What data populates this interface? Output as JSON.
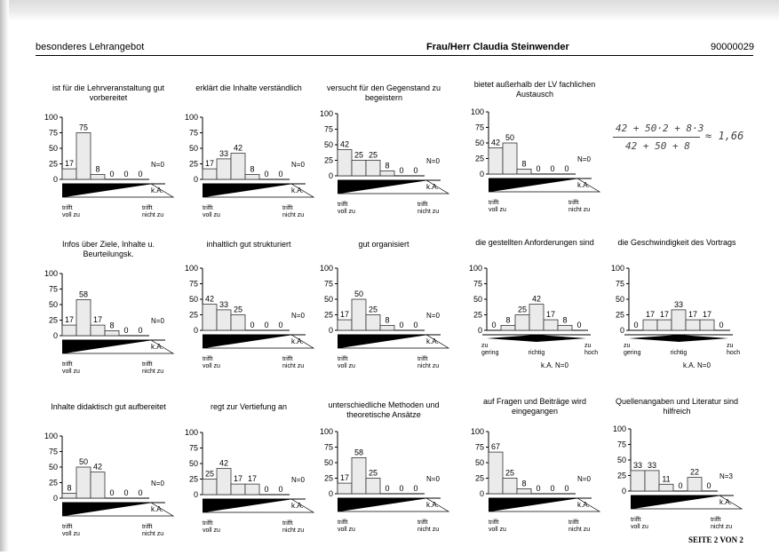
{
  "header": {
    "left": "besonderes Lehrangebot",
    "center": "Frau/Herr Claudia Steinwender",
    "right": "90000029"
  },
  "formula": {
    "numerator": "42 + 50·2 + 8·3",
    "denominator": "42 + 50 + 8",
    "result": "≈ 1,66"
  },
  "footer": "SEITE 2 VON 2",
  "chart_data": [
    {
      "type": "bar",
      "title": [
        "ist für die Lehrveranstaltung gut",
        "vorbereitet"
      ],
      "values": [
        17,
        75,
        8,
        0,
        0,
        0
      ],
      "n_label": "N=0",
      "ka_label": "k.A.",
      "scale": "agree",
      "left_label": [
        "trifft",
        "voll zu"
      ],
      "right_label": [
        "trifft",
        "nicht zu"
      ],
      "yticks": [
        0,
        25,
        50,
        75,
        100
      ],
      "ylim": [
        0,
        100
      ]
    },
    {
      "type": "bar",
      "title": [
        "erklärt die Inhalte verständlich"
      ],
      "values": [
        17,
        33,
        42,
        8,
        0,
        0
      ],
      "n_label": "N=0",
      "ka_label": "k.A.",
      "scale": "agree",
      "left_label": [
        "trifft",
        "voll zu"
      ],
      "right_label": [
        "trifft",
        "nicht zu"
      ],
      "yticks": [
        0,
        25,
        50,
        75,
        100
      ],
      "ylim": [
        0,
        100
      ]
    },
    {
      "type": "bar",
      "title": [
        "versucht für den Gegenstand zu",
        "begeistern"
      ],
      "values": [
        42,
        25,
        25,
        8,
        0,
        0
      ],
      "n_label": "N=0",
      "ka_label": "k.A.",
      "scale": "agree",
      "left_label": [
        "trifft",
        "voll zu"
      ],
      "right_label": [
        "trifft",
        "nicht zu"
      ],
      "yticks": [
        0,
        25,
        50,
        75,
        100
      ],
      "ylim": [
        0,
        100
      ]
    },
    {
      "type": "bar",
      "title": [
        "bietet außerhalb der LV fachlichen",
        "Austausch"
      ],
      "values": [
        42,
        50,
        8,
        0,
        0,
        0
      ],
      "n_label": "N=0",
      "ka_label": "k.A.",
      "scale": "agree",
      "left_label": [
        "trifft",
        "voll zu"
      ],
      "right_label": [
        "trifft",
        "nicht zu"
      ],
      "yticks": [
        0,
        25,
        50,
        75,
        100
      ],
      "ylim": [
        0,
        100
      ]
    },
    {
      "type": "bar",
      "title": [
        "Infos über Ziele, Inhalte u.",
        "Beurteilungsk."
      ],
      "values": [
        17,
        58,
        17,
        8,
        0,
        0
      ],
      "n_label": "N=0",
      "ka_label": "k.A.",
      "scale": "agree",
      "left_label": [
        "trifft",
        "voll zu"
      ],
      "right_label": [
        "trifft",
        "nicht zu"
      ],
      "yticks": [
        0,
        25,
        50,
        75,
        100
      ],
      "ylim": [
        0,
        100
      ]
    },
    {
      "type": "bar",
      "title": [
        "inhaltlich gut strukturiert"
      ],
      "values": [
        42,
        33,
        25,
        0,
        0,
        0
      ],
      "n_label": "N=0",
      "ka_label": "k.A.",
      "scale": "agree",
      "left_label": [
        "trifft",
        "voll zu"
      ],
      "right_label": [
        "trifft",
        "nicht zu"
      ],
      "yticks": [
        0,
        25,
        50,
        75,
        100
      ],
      "ylim": [
        0,
        100
      ]
    },
    {
      "type": "bar",
      "title": [
        "gut organisiert"
      ],
      "values": [
        17,
        50,
        25,
        8,
        0,
        0
      ],
      "n_label": "N=0",
      "ka_label": "k.A.",
      "scale": "agree",
      "left_label": [
        "trifft",
        "voll zu"
      ],
      "right_label": [
        "trifft",
        "nicht zu"
      ],
      "yticks": [
        0,
        25,
        50,
        75,
        100
      ],
      "ylim": [
        0,
        100
      ]
    },
    {
      "type": "bar",
      "title": [
        "die gestellten Anforderungen sind"
      ],
      "values": [
        0,
        8,
        25,
        42,
        17,
        8,
        0
      ],
      "n_label": "k.A. N=0",
      "scale": "level",
      "left_label": [
        "zu",
        "gering"
      ],
      "mid_label": "richtig",
      "right_label": [
        "zu",
        "hoch"
      ],
      "yticks": [
        0,
        25,
        50,
        75,
        100
      ],
      "ylim": [
        0,
        100
      ]
    },
    {
      "type": "bar",
      "title": [
        "die Geschwindigkeit des Vortrags"
      ],
      "values": [
        0,
        17,
        17,
        33,
        17,
        17,
        0
      ],
      "n_label": "k.A. N=0",
      "scale": "level",
      "left_label": [
        "zu",
        "gering"
      ],
      "mid_label": "richtig",
      "right_label": [
        "zu",
        "hoch"
      ],
      "yticks": [
        0,
        25,
        50,
        75,
        100
      ],
      "ylim": [
        0,
        100
      ]
    },
    {
      "type": "bar",
      "title": [
        "Inhalte didaktisch gut aufbereitet"
      ],
      "values": [
        8,
        50,
        42,
        0,
        0,
        0
      ],
      "n_label": "N=0",
      "ka_label": "k.A.",
      "scale": "agree",
      "left_label": [
        "trifft",
        "voll zu"
      ],
      "right_label": [
        "trifft",
        "nicht zu"
      ],
      "yticks": [
        0,
        25,
        50,
        75,
        100
      ],
      "ylim": [
        0,
        100
      ]
    },
    {
      "type": "bar",
      "title": [
        "regt zur Vertiefung an"
      ],
      "values": [
        25,
        42,
        17,
        17,
        0,
        0
      ],
      "n_label": "N=0",
      "ka_label": "k.A.",
      "scale": "agree",
      "left_label": [
        "trifft",
        "voll zu"
      ],
      "right_label": [
        "trifft",
        "nicht zu"
      ],
      "yticks": [
        0,
        25,
        50,
        75,
        100
      ],
      "ylim": [
        0,
        100
      ]
    },
    {
      "type": "bar",
      "title": [
        "unterschiedliche Methoden und",
        "theoretische Ansätze"
      ],
      "values": [
        17,
        58,
        25,
        0,
        0,
        0
      ],
      "n_label": "N=0",
      "ka_label": "k.A.",
      "scale": "agree",
      "left_label": [
        "trifft",
        "voll zu"
      ],
      "right_label": [
        "trifft",
        "nicht zu"
      ],
      "yticks": [
        0,
        25,
        50,
        75,
        100
      ],
      "ylim": [
        0,
        100
      ]
    },
    {
      "type": "bar",
      "title": [
        "auf Fragen und Beiträge wird",
        "eingegangen"
      ],
      "values": [
        67,
        25,
        8,
        0,
        0,
        0
      ],
      "n_label": "N=0",
      "ka_label": "k.A.",
      "scale": "agree",
      "left_label": [
        "trifft",
        "voll zu"
      ],
      "right_label": [
        "trifft",
        "nicht zu"
      ],
      "yticks": [
        0,
        25,
        50,
        75,
        100
      ],
      "ylim": [
        0,
        100
      ]
    },
    {
      "type": "bar",
      "title": [
        "Quellenangaben und Literatur sind",
        "hilfreich"
      ],
      "values": [
        33,
        33,
        11,
        0,
        22,
        0
      ],
      "n_label": "N=3",
      "ka_label": "k.A.",
      "scale": "agree",
      "left_label": [
        "trifft",
        "voll zu"
      ],
      "right_label": [
        "trifft",
        "nicht zu"
      ],
      "yticks": [
        0,
        25,
        50,
        75,
        100
      ],
      "ylim": [
        0,
        100
      ]
    }
  ]
}
